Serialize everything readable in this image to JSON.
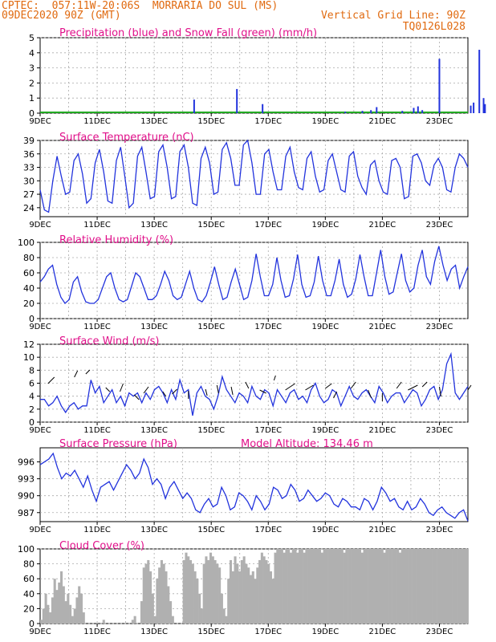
{
  "header": {
    "line1_left": "CPTEC:  057:11W-20:06S  MORRARIA DO SUL (MS)",
    "line2_left": "09DEC2020 90Z (GMT)",
    "line2_right": "Vertical Grid Line: 90Z",
    "line3_right": "TQ0126L028"
  },
  "colors": {
    "header": "#e06a10",
    "title": "#e0108a",
    "line": "#2233dd",
    "snow": "#22aa22",
    "cloud": "#b0b0b0",
    "grid": "#aaaaaa"
  },
  "x_tick_labels": [
    "9DEC",
    "11DEC",
    "13DEC",
    "15DEC",
    "17DEC",
    "19DEC",
    "21DEC",
    "23DEC"
  ],
  "chart_data": [
    {
      "type": "bar",
      "title": "Precipitation (blue) and Snow Fall (green) (mm/h)",
      "ylim": [
        0,
        5
      ],
      "y_ticks": [
        "0",
        "1",
        "2",
        "3",
        "4",
        "5"
      ],
      "series": [
        {
          "name": "Precipitation",
          "points": [
            [
              5.4,
              0.9
            ],
            [
              6.9,
              1.6
            ],
            [
              7.8,
              0.6
            ],
            [
              10.7,
              0.1
            ],
            [
              11.3,
              0.15
            ],
            [
              11.6,
              0.2
            ],
            [
              11.8,
              0.4
            ],
            [
              12.7,
              0.15
            ],
            [
              13.1,
              0.35
            ],
            [
              13.25,
              0.45
            ],
            [
              13.4,
              0.2
            ],
            [
              14.0,
              3.6
            ],
            [
              15.1,
              0.5
            ],
            [
              15.2,
              0.7
            ],
            [
              15.4,
              4.2
            ],
            [
              15.55,
              1.0
            ],
            [
              15.6,
              0.6
            ],
            [
              16.5,
              0.7
            ],
            [
              16.6,
              0.5
            ]
          ]
        },
        {
          "name": "Snow Fall",
          "points": []
        }
      ]
    },
    {
      "type": "line",
      "title": "Surface Temperature (nC)",
      "ylim": [
        22,
        39
      ],
      "y_ticks": [
        "24",
        "27",
        "30",
        "33",
        "36",
        "39"
      ],
      "series": [
        {
          "values": [
            28.0,
            23.5,
            23.0,
            30.0,
            35.5,
            31.0,
            27.0,
            27.5,
            34.5,
            36.0,
            31.5,
            25.0,
            26.0,
            34.0,
            37.0,
            32.0,
            25.5,
            25.0,
            34.5,
            37.5,
            31.0,
            24.0,
            25.0,
            35.5,
            37.5,
            32.0,
            26.0,
            26.5,
            36.5,
            38.0,
            33.0,
            26.0,
            26.5,
            36.5,
            38.0,
            33.0,
            25.0,
            24.5,
            35.0,
            37.5,
            34.0,
            27.0,
            27.5,
            37.0,
            38.5,
            35.0,
            29.0,
            29.0,
            38.0,
            39.0,
            34.0,
            27.0,
            27.0,
            36.0,
            37.0,
            32.0,
            28.0,
            28.0,
            35.5,
            37.5,
            32.0,
            28.5,
            28.0,
            35.0,
            36.5,
            31.0,
            27.5,
            28.0,
            34.5,
            36.0,
            32.0,
            28.0,
            27.5,
            35.5,
            36.5,
            31.0,
            28.5,
            27.0,
            33.5,
            34.5,
            30.0,
            27.5,
            27.0,
            34.5,
            35.0,
            33.0,
            26.0,
            26.5,
            35.5,
            36.0,
            34.0,
            30.0,
            29.0,
            33.5,
            35.0,
            33.0,
            28.0,
            27.5,
            33.0,
            36.0,
            35.0,
            33.0
          ]
        }
      ]
    },
    {
      "type": "line",
      "title": "Relative Humidity (%)",
      "ylim": [
        0,
        100
      ],
      "y_ticks": [
        "0",
        "20",
        "40",
        "60",
        "80",
        "100"
      ],
      "series": [
        {
          "values": [
            48,
            55,
            65,
            70,
            45,
            28,
            20,
            25,
            48,
            55,
            35,
            22,
            20,
            20,
            25,
            40,
            55,
            60,
            40,
            25,
            22,
            25,
            42,
            60,
            55,
            40,
            25,
            25,
            30,
            45,
            62,
            50,
            30,
            25,
            28,
            45,
            62,
            40,
            25,
            22,
            30,
            48,
            68,
            45,
            25,
            28,
            48,
            65,
            45,
            25,
            28,
            50,
            85,
            55,
            30,
            30,
            45,
            80,
            50,
            28,
            30,
            52,
            84,
            45,
            28,
            30,
            48,
            82,
            50,
            30,
            30,
            50,
            78,
            45,
            28,
            32,
            52,
            84,
            55,
            30,
            30,
            60,
            90,
            55,
            32,
            35,
            60,
            85,
            50,
            35,
            40,
            70,
            90,
            55,
            45,
            75,
            95,
            70,
            50,
            65,
            70,
            40,
            55,
            68
          ]
        }
      ]
    },
    {
      "type": "line",
      "title": "Surface Wind (m/s)",
      "ylim": [
        0,
        12
      ],
      "y_ticks": [
        "0",
        "2",
        "4",
        "6",
        "8",
        "10",
        "12"
      ],
      "series": [
        {
          "values": [
            3.5,
            3.5,
            2.5,
            3.0,
            4.0,
            2.5,
            1.5,
            2.5,
            3.0,
            2.0,
            2.5,
            2.5,
            6.5,
            4.5,
            5.5,
            3.0,
            4.0,
            5.0,
            3.0,
            4.0,
            2.5,
            4.5,
            4.0,
            4.5,
            3.0,
            4.5,
            3.5,
            5.0,
            5.5,
            4.5,
            3.0,
            5.0,
            3.5,
            6.5,
            4.5,
            5.0,
            1.0,
            4.5,
            5.5,
            4.0,
            3.5,
            2.0,
            4.0,
            7.0,
            5.0,
            4.0,
            3.0,
            4.5,
            4.0,
            3.0,
            5.5,
            4.0,
            3.5,
            5.0,
            4.5,
            2.5,
            5.0,
            4.0,
            3.0,
            4.5,
            5.0,
            3.5,
            4.0,
            3.0,
            5.0,
            6.0,
            4.0,
            3.0,
            3.5,
            5.0,
            4.5,
            2.5,
            4.0,
            5.5,
            4.0,
            3.5,
            4.5,
            5.0,
            4.0,
            3.0,
            5.5,
            4.5,
            3.0,
            4.0,
            4.5,
            4.5,
            3.0,
            4.0,
            5.0,
            4.5,
            2.5,
            3.5,
            5.0,
            5.5,
            3.5,
            5.0,
            9.0,
            10.5,
            4.5,
            3.5,
            4.5,
            5.5
          ]
        }
      ]
    },
    {
      "type": "line",
      "title": "Surface Pressure (hPa)",
      "annotation": "Model Altitude: 134.46 m",
      "ylim": [
        985.4,
        998.5
      ],
      "y_ticks": [
        "987",
        "990",
        "993",
        "996"
      ],
      "series": [
        {
          "values": [
            995.5,
            996.0,
            996.5,
            997.5,
            995.0,
            993.0,
            994.0,
            993.5,
            994.5,
            993.0,
            991.5,
            993.5,
            991.0,
            989.0,
            991.5,
            992.0,
            992.5,
            991.0,
            992.5,
            994.0,
            995.5,
            994.5,
            993.0,
            994.0,
            996.5,
            995.0,
            992.0,
            993.0,
            992.0,
            989.5,
            991.5,
            992.5,
            991.0,
            989.5,
            990.5,
            989.5,
            987.5,
            987.0,
            988.5,
            989.5,
            988.0,
            988.5,
            991.5,
            990.0,
            987.5,
            988.0,
            990.5,
            990.0,
            989.0,
            987.5,
            990.0,
            989.0,
            987.5,
            988.5,
            991.5,
            991.0,
            989.5,
            990.0,
            992.0,
            991.0,
            989.0,
            989.5,
            991.0,
            990.0,
            989.0,
            989.5,
            990.5,
            990.0,
            988.5,
            988.0,
            989.5,
            989.0,
            988.0,
            988.0,
            987.5,
            989.5,
            989.0,
            987.5,
            989.0,
            991.5,
            990.5,
            989.0,
            989.5,
            988.0,
            987.5,
            989.0,
            987.5,
            988.0,
            989.5,
            988.5,
            987.0,
            986.5,
            987.5,
            988.0,
            987.0,
            986.5,
            986.0,
            987.0,
            987.5,
            985.5
          ]
        }
      ]
    },
    {
      "type": "bar",
      "title": "Cloud Cover (%)",
      "ylim": [
        0,
        100
      ],
      "y_ticks": [
        "0",
        "20",
        "40",
        "60",
        "80",
        "100"
      ],
      "series": [
        {
          "values": [
            5,
            20,
            40,
            25,
            15,
            35,
            60,
            45,
            55,
            70,
            50,
            30,
            40,
            25,
            10,
            20,
            35,
            50,
            40,
            15,
            0,
            0,
            0,
            0,
            0,
            0,
            0,
            0,
            5,
            0,
            0,
            0,
            0,
            0,
            0,
            0,
            0,
            0,
            0,
            0,
            0,
            5,
            10,
            0,
            0,
            30,
            75,
            80,
            85,
            70,
            40,
            10,
            60,
            75,
            85,
            80,
            70,
            50,
            30,
            10,
            0,
            0,
            0,
            0,
            85,
            95,
            90,
            85,
            80,
            70,
            60,
            40,
            20,
            80,
            90,
            85,
            95,
            90,
            85,
            80,
            75,
            40,
            20,
            10,
            60,
            85,
            70,
            90,
            80,
            70,
            85,
            90,
            80,
            75,
            65,
            70,
            60,
            75,
            85,
            95,
            90,
            85,
            80,
            70,
            60,
            95,
            100,
            100,
            100,
            95,
            100,
            100,
            95,
            100,
            100,
            95,
            100,
            100,
            95,
            100,
            100,
            100,
            100,
            100,
            100,
            100,
            95,
            100,
            100,
            100,
            100,
            100,
            100,
            100,
            100,
            100,
            95,
            100,
            100,
            100,
            100,
            100,
            100,
            100,
            95,
            100,
            100,
            100,
            100,
            100,
            100,
            100,
            100,
            100,
            95,
            100,
            100,
            100,
            100,
            100,
            100,
            95,
            100,
            100,
            100,
            100,
            100,
            100,
            100,
            100,
            100,
            100,
            100,
            100,
            100,
            100,
            100,
            100,
            100,
            100,
            100,
            100,
            100,
            100,
            100,
            100,
            100,
            100,
            100,
            100,
            100,
            100
          ]
        }
      ]
    }
  ]
}
